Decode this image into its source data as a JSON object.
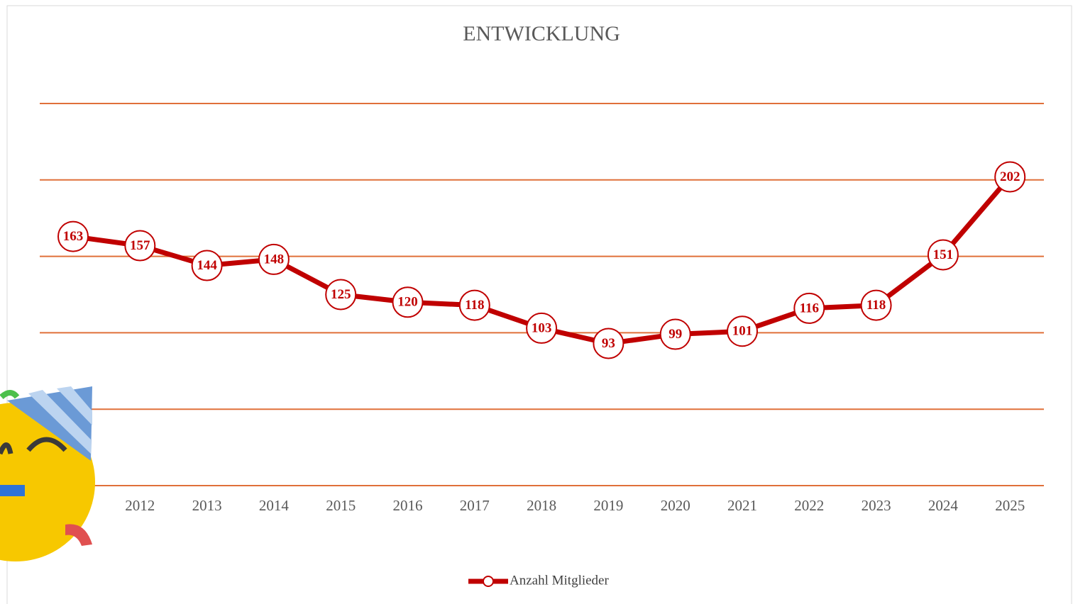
{
  "chart_data": {
    "type": "line",
    "title": "ENTWICKLUNG",
    "categories": [
      null,
      "2012",
      "2013",
      "2014",
      "2015",
      "2016",
      "2017",
      "2018",
      "2019",
      "2020",
      "2021",
      "2022",
      "2023",
      "2024",
      "2025"
    ],
    "series": [
      {
        "name": "Anzahl Mitglieder",
        "color": "#c00000",
        "values": [
          163,
          157,
          144,
          148,
          125,
          120,
          118,
          103,
          93,
          99,
          101,
          116,
          118,
          151,
          202
        ]
      }
    ],
    "ylim": [
      0,
      250
    ],
    "yticks": [
      0,
      50,
      100,
      150,
      200,
      250
    ],
    "ytick_labels": false,
    "grid": true,
    "grid_color": "#e0703a",
    "data_labels": true,
    "legend": "bottom"
  }
}
